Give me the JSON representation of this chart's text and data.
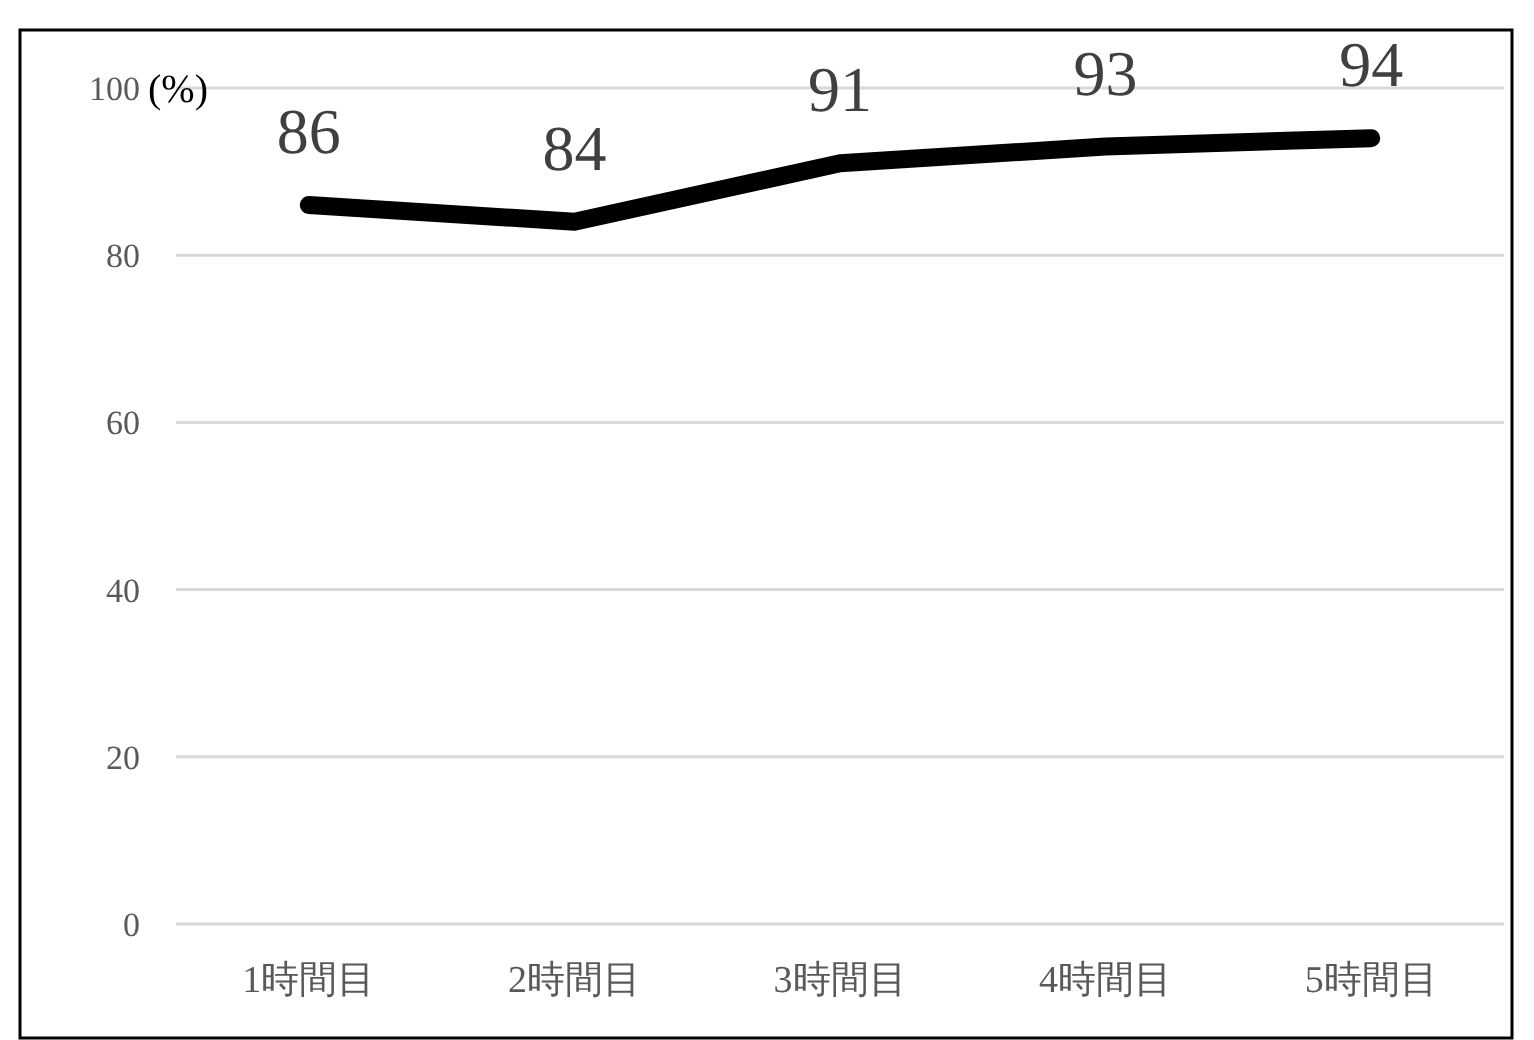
{
  "chart_data": {
    "type": "line",
    "ylabel": "(%)",
    "categories": [
      "1時間目",
      "2時間目",
      "3時間目",
      "4時間目",
      "5時間目"
    ],
    "series": [
      {
        "color": "#000000",
        "values": [
          86,
          84,
          91,
          93,
          94
        ]
      }
    ],
    "ylim": [
      0,
      100
    ],
    "yticks": [
      0,
      20,
      40,
      60,
      80,
      100
    ],
    "grid": "y",
    "data_labels": true,
    "marker": "none",
    "line_style": "solid"
  }
}
